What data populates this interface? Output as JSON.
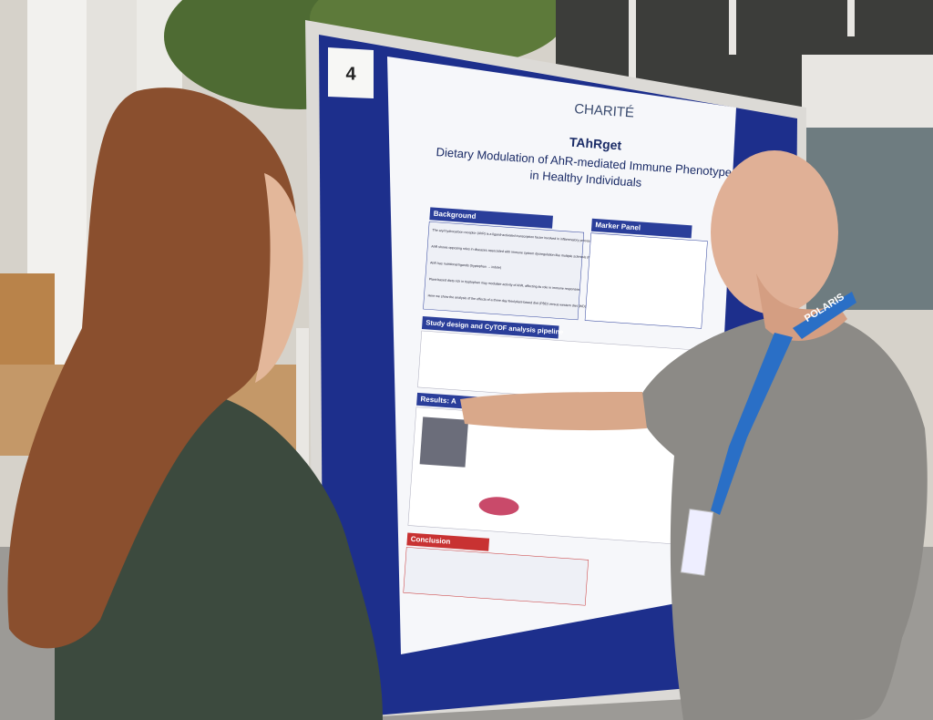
{
  "board_number": "4",
  "poster": {
    "logo": "CHARITÉ",
    "title": "TAhRget",
    "subtitle": [
      "Dietary Modulation of AhR-mediated Immune Phenotypes",
      "in Healthy Individuals"
    ],
    "sections": [
      "Background",
      "Marker Panel",
      "Study design and CyTOF analysis pipeline",
      "Results: A",
      "Conclusion"
    ],
    "background_bullets": [
      "The aryl hydrocarbon receptor (AhR) is a ligand-activated transcription factor involved in inflammatory processes",
      "AhR shows opposing roles in diseases associated with immune system dysregulation like multiple sclerosis (MS) and chronic kidney disease (CKD)",
      "AhR has nutritional ligands (tryptophan → indole)",
      "Plant-based diets rich in tryptophan may modulate activity of AhR, affecting its role in immune responses",
      "Here we show the analysis of the effects of a three day feed plant-based diet (PBD) versus western diet (WD) on immune cell phenotypes"
    ]
  },
  "lanyard": "POLARIS"
}
